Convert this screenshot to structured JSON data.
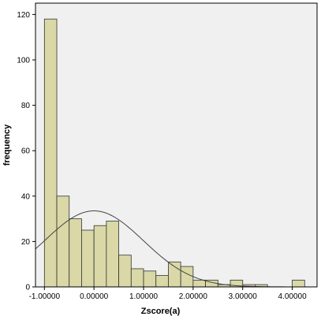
{
  "chart_data": {
    "type": "bar",
    "title": "",
    "xlabel": "Zscore(a)",
    "ylabel": "frequency",
    "xlim": [
      -1.18,
      4.5
    ],
    "ylim": [
      0,
      125
    ],
    "x_ticks": [
      -1,
      0,
      1,
      2,
      3,
      4
    ],
    "x_tick_labels": [
      "-1.00000",
      "0.00000",
      "1.00000",
      "2.00000",
      "3.00000",
      "4.00000"
    ],
    "y_ticks": [
      0,
      20,
      40,
      60,
      80,
      100,
      120
    ],
    "y_tick_labels": [
      "0",
      "20",
      "40",
      "60",
      "80",
      "100",
      "120"
    ],
    "bin_width": 0.25,
    "bins": [
      {
        "start": -1.0,
        "count": 118
      },
      {
        "start": -0.75,
        "count": 40
      },
      {
        "start": -0.5,
        "count": 30
      },
      {
        "start": -0.25,
        "count": 25
      },
      {
        "start": 0.0,
        "count": 27
      },
      {
        "start": 0.25,
        "count": 29
      },
      {
        "start": 0.5,
        "count": 14
      },
      {
        "start": 0.75,
        "count": 8
      },
      {
        "start": 1.0,
        "count": 7
      },
      {
        "start": 1.25,
        "count": 5
      },
      {
        "start": 1.5,
        "count": 11
      },
      {
        "start": 1.75,
        "count": 9
      },
      {
        "start": 2.0,
        "count": 3
      },
      {
        "start": 2.25,
        "count": 3
      },
      {
        "start": 2.5,
        "count": 1
      },
      {
        "start": 2.75,
        "count": 3
      },
      {
        "start": 3.0,
        "count": 1
      },
      {
        "start": 3.25,
        "count": 1
      },
      {
        "start": 3.5,
        "count": 0
      },
      {
        "start": 3.75,
        "count": 0
      },
      {
        "start": 4.0,
        "count": 3
      }
    ],
    "normal_curve": {
      "mean": 0.0,
      "sd": 1.0,
      "peak": 33.5
    },
    "grid": false,
    "colors": {
      "bar_fill": "#d9d8a6",
      "bar_stroke": "#333333",
      "plot_bg": "#f0f0f0",
      "curve": "#444444"
    }
  }
}
